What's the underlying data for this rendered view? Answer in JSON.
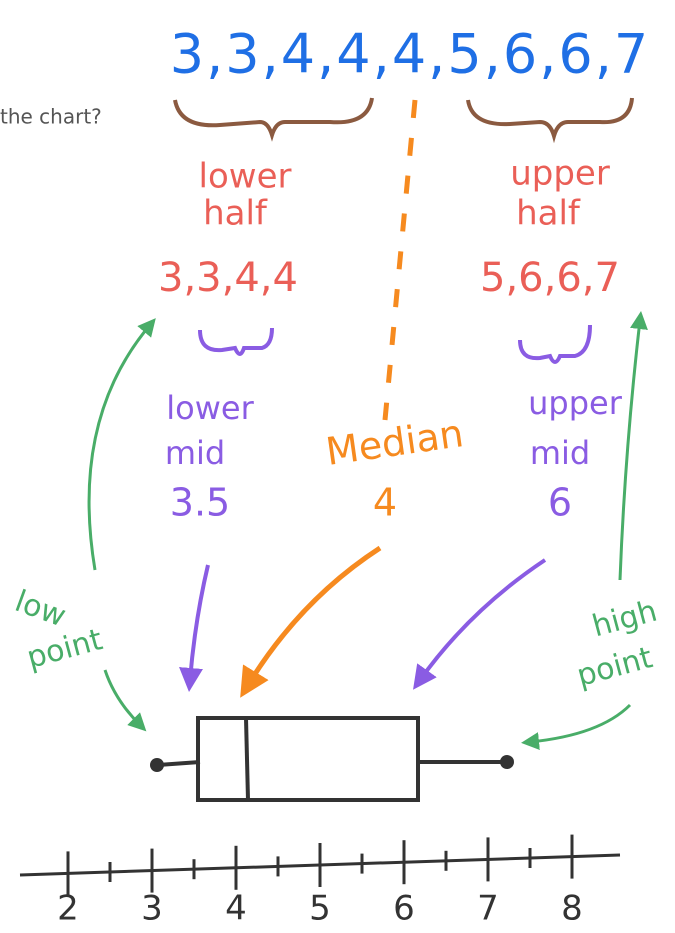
{
  "question_fragment": "the chart?",
  "sequence": "3,3,4,4,4,5,6,6,7",
  "lower": {
    "label": [
      "lower",
      "half"
    ],
    "values": "3,3,4,4",
    "mid_label": [
      "lower",
      "mid"
    ],
    "mid_value": "3.5"
  },
  "upper": {
    "label": [
      "upper",
      "half"
    ],
    "values": "5,6,6,7",
    "mid_label": [
      "upper",
      "mid"
    ],
    "mid_value": "6"
  },
  "median": {
    "label": "Median",
    "value": "4"
  },
  "low_point": [
    "low",
    "point"
  ],
  "high_point": [
    "high",
    "point"
  ],
  "axis_labels": [
    "2",
    "3",
    "4",
    "5",
    "6",
    "7",
    "8"
  ]
}
